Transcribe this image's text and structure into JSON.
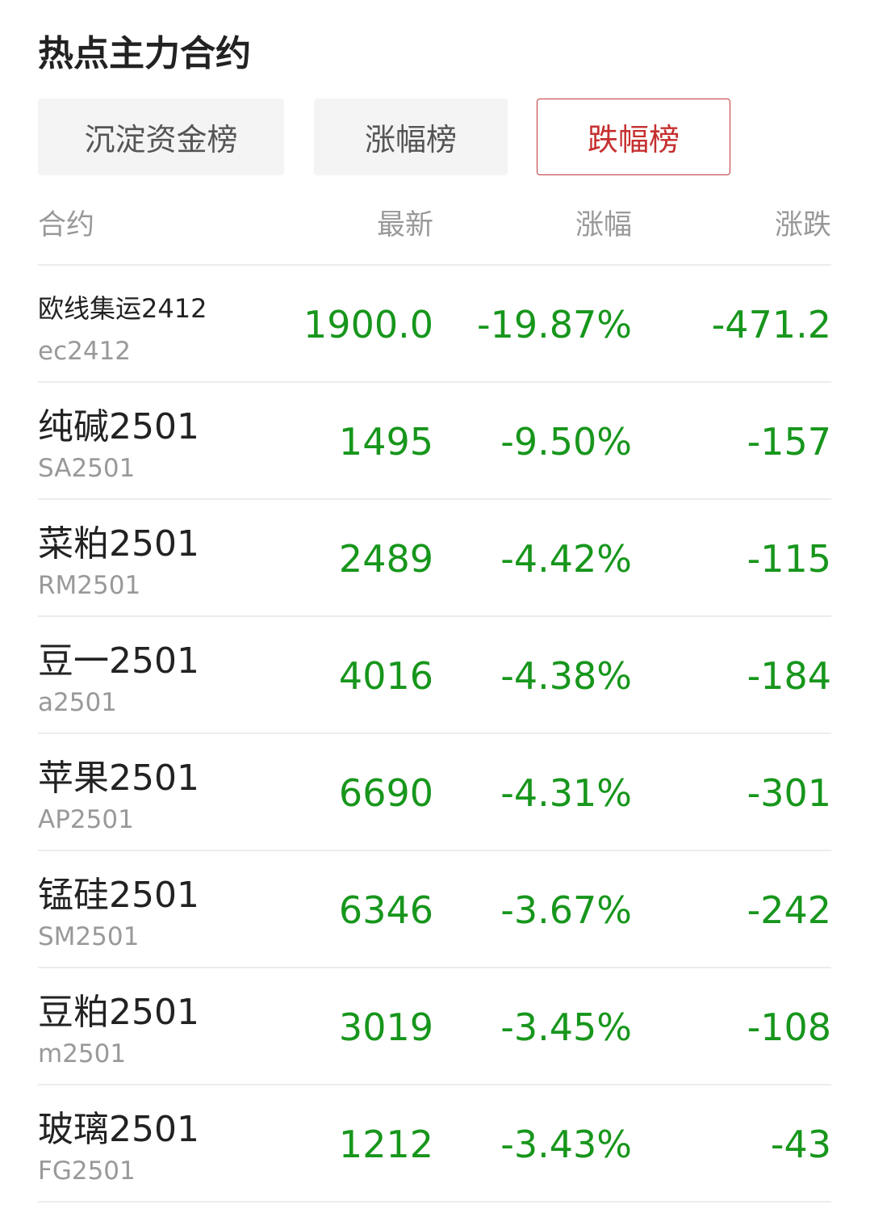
{
  "title": "热点主力合约",
  "tabs": [
    {
      "label": "沉淀资金榜",
      "active": false
    },
    {
      "label": "涨幅榜",
      "active": false
    },
    {
      "label": "跌幅榜",
      "active": true
    }
  ],
  "columns": [
    "合约",
    "最新",
    "涨幅",
    "涨跌"
  ],
  "colors": {
    "down": "#17961c",
    "active_tab": "#c62f2f"
  },
  "rows": [
    {
      "name": "欧线集运2412",
      "code": "ec2412",
      "last": "1900.0",
      "pct": "-19.87%",
      "chg": "-471.2"
    },
    {
      "name": "纯碱2501",
      "code": "SA2501",
      "last": "1495",
      "pct": "-9.50%",
      "chg": "-157"
    },
    {
      "name": "菜粕2501",
      "code": "RM2501",
      "last": "2489",
      "pct": "-4.42%",
      "chg": "-115"
    },
    {
      "name": "豆一2501",
      "code": "a2501",
      "last": "4016",
      "pct": "-4.38%",
      "chg": "-184"
    },
    {
      "name": "苹果2501",
      "code": "AP2501",
      "last": "6690",
      "pct": "-4.31%",
      "chg": "-301"
    },
    {
      "name": "锰硅2501",
      "code": "SM2501",
      "last": "6346",
      "pct": "-3.67%",
      "chg": "-242"
    },
    {
      "name": "豆粕2501",
      "code": "m2501",
      "last": "3019",
      "pct": "-3.45%",
      "chg": "-108"
    },
    {
      "name": "玻璃2501",
      "code": "FG2501",
      "last": "1212",
      "pct": "-3.43%",
      "chg": "-43"
    }
  ]
}
